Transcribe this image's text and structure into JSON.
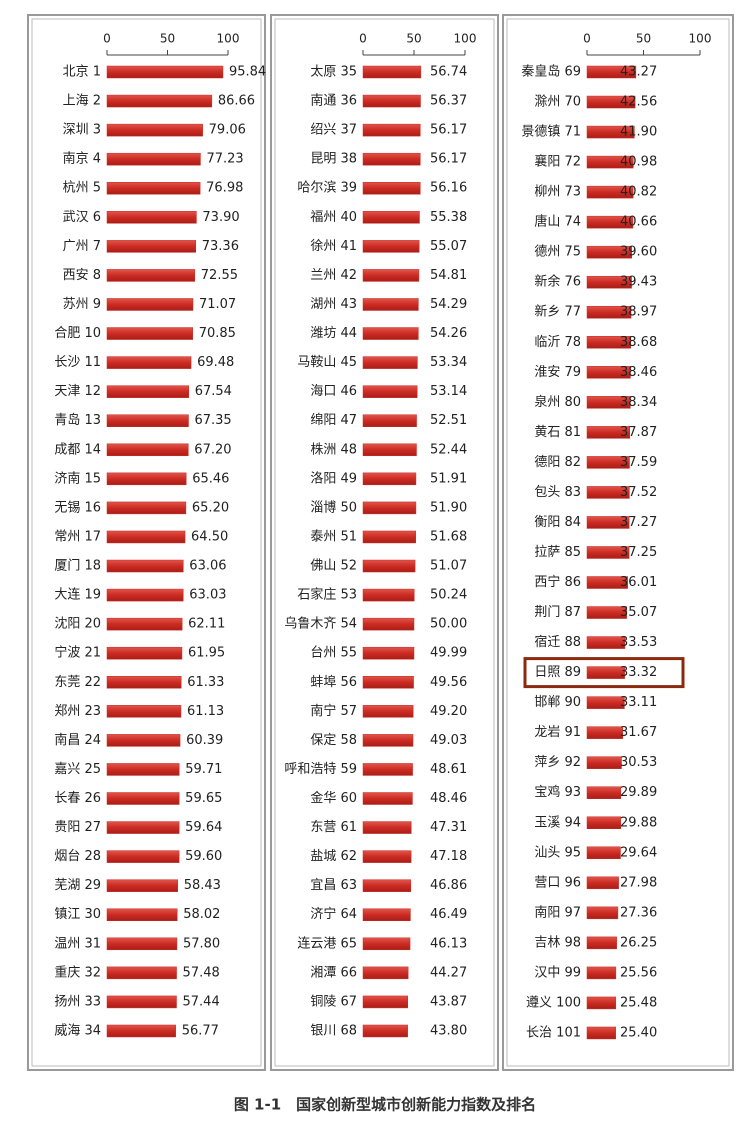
{
  "caption": "图 1-1　国家创新型城市创新能力指数及排名",
  "chart_data": [
    {
      "type": "bar",
      "orientation": "horizontal",
      "color": "#cc2b22",
      "xlim": [
        0,
        100
      ],
      "xticks": [
        0,
        50,
        100
      ],
      "categories": [
        "北京 1",
        "上海 2",
        "深圳 3",
        "南京 4",
        "杭州 5",
        "武汉 6",
        "广州 7",
        "西安 8",
        "苏州 9",
        "合肥 10",
        "长沙 11",
        "天津 12",
        "青岛 13",
        "成都 14",
        "济南 15",
        "无锡 16",
        "常州 17",
        "厦门 18",
        "大连 19",
        "沈阳 20",
        "宁波 21",
        "东莞 22",
        "郑州 23",
        "南昌 24",
        "嘉兴 25",
        "长春 26",
        "贵阳 27",
        "烟台 28",
        "芜湖 29",
        "镇江 30",
        "温州 31",
        "重庆 32",
        "扬州 33",
        "威海 34"
      ],
      "values": [
        95.84,
        86.66,
        79.06,
        77.23,
        76.98,
        73.9,
        73.36,
        72.55,
        71.07,
        70.85,
        69.48,
        67.54,
        67.35,
        67.2,
        65.46,
        65.2,
        64.5,
        63.06,
        63.03,
        62.11,
        61.95,
        61.33,
        61.13,
        60.39,
        59.71,
        59.65,
        59.64,
        59.6,
        58.43,
        58.02,
        57.8,
        57.48,
        57.44,
        56.77
      ],
      "value_labels": [
        "95.84",
        "86.66",
        "79.06",
        "77.23",
        "76.98",
        "73.90",
        "73.36",
        "72.55",
        "71.07",
        "70.85",
        "69.48",
        "67.54",
        "67.35",
        "67.20",
        "65.46",
        "65.20",
        "64.50",
        "63.06",
        "63.03",
        "62.11",
        "61.95",
        "61.33",
        "61.13",
        "60.39",
        "59.71",
        "59.65",
        "59.64",
        "59.60",
        "58.43",
        "58.02",
        "57.80",
        "57.48",
        "57.44",
        "56.77"
      ]
    },
    {
      "type": "bar",
      "orientation": "horizontal",
      "color": "#cc2b22",
      "xlim": [
        0,
        100
      ],
      "xticks": [
        0,
        50,
        100
      ],
      "categories": [
        "太原 35",
        "南通 36",
        "绍兴 37",
        "昆明 38",
        "哈尔滨 39",
        "福州 40",
        "徐州 41",
        "兰州 42",
        "湖州 43",
        "潍坊 44",
        "马鞍山 45",
        "海口 46",
        "绵阳 47",
        "株洲 48",
        "洛阳 49",
        "淄博 50",
        "泰州 51",
        "佛山 52",
        "石家庄 53",
        "乌鲁木齐 54",
        "台州 55",
        "蚌埠 56",
        "南宁 57",
        "保定 58",
        "呼和浩特 59",
        "金华 60",
        "东营 61",
        "盐城 62",
        "宜昌 63",
        "济宁 64",
        "连云港 65",
        "湘潭 66",
        "铜陵 67",
        "银川 68"
      ],
      "values": [
        56.74,
        56.37,
        56.17,
        56.17,
        56.16,
        55.38,
        55.07,
        54.81,
        54.29,
        54.26,
        53.34,
        53.14,
        52.51,
        52.44,
        51.91,
        51.9,
        51.68,
        51.07,
        50.24,
        50,
        49.99,
        49.56,
        49.2,
        49.03,
        48.61,
        48.46,
        47.31,
        47.18,
        46.86,
        46.49,
        46.13,
        44.27,
        43.87,
        43.8
      ],
      "value_labels": [
        "56.74",
        "56.37",
        "56.17",
        "56.17",
        "56.16",
        "55.38",
        "55.07",
        "54.81",
        "54.29",
        "54.26",
        "53.34",
        "53.14",
        "52.51",
        "52.44",
        "51.91",
        "51.90",
        "51.68",
        "51.07",
        "50.24",
        "50.00",
        "49.99",
        "49.56",
        "49.20",
        "49.03",
        "48.61",
        "48.46",
        "47.31",
        "47.18",
        "46.86",
        "46.49",
        "46.13",
        "44.27",
        "43.87",
        "43.80"
      ]
    },
    {
      "type": "bar",
      "orientation": "horizontal",
      "color": "#cc2b22",
      "xlim": [
        0,
        100
      ],
      "xticks": [
        0,
        50,
        100
      ],
      "categories": [
        "秦皇岛 69",
        "滁州 70",
        "景德镇 71",
        "襄阳 72",
        "柳州 73",
        "唐山 74",
        "德州 75",
        "新余 76",
        "新乡 77",
        "临沂 78",
        "淮安 79",
        "泉州 80",
        "黄石 81",
        "德阳 82",
        "包头 83",
        "衡阳 84",
        "拉萨 85",
        "西宁 86",
        "荆门 87",
        "宿迁 88",
        "日照 89",
        "邯郸 90",
        "龙岩 91",
        "萍乡 92",
        "宝鸡 93",
        "玉溪 94",
        "汕头 95",
        "营口 96",
        "南阳 97",
        "吉林 98",
        "汉中 99",
        "遵义 100",
        "长治 101"
      ],
      "values": [
        43.27,
        42.56,
        41.9,
        40.98,
        40.82,
        40.66,
        39.6,
        39.43,
        38.97,
        38.68,
        38.46,
        38.34,
        37.87,
        37.59,
        37.52,
        37.27,
        37.25,
        36.01,
        35.07,
        33.53,
        33.32,
        33.11,
        31.67,
        30.53,
        29.89,
        29.88,
        29.64,
        27.98,
        27.36,
        26.25,
        25.56,
        25.48,
        25.4
      ],
      "value_labels": [
        "43.27",
        "42.56",
        "41.90",
        "40.98",
        "40.82",
        "40.66",
        "39.60",
        "39.43",
        "38.97",
        "38.68",
        "38.46",
        "38.34",
        "37.87",
        "37.59",
        "37.52",
        "37.27",
        "37.25",
        "36.01",
        "35.07",
        "33.53",
        "33.32",
        "33.11",
        "31.67",
        "30.53",
        "29.89",
        "29.88",
        "29.64",
        "27.98",
        "27.36",
        "26.25",
        "25.56",
        "25.48",
        "25.40"
      ],
      "highlight_index": 20,
      "highlight_color": "#8b2a0e"
    }
  ]
}
